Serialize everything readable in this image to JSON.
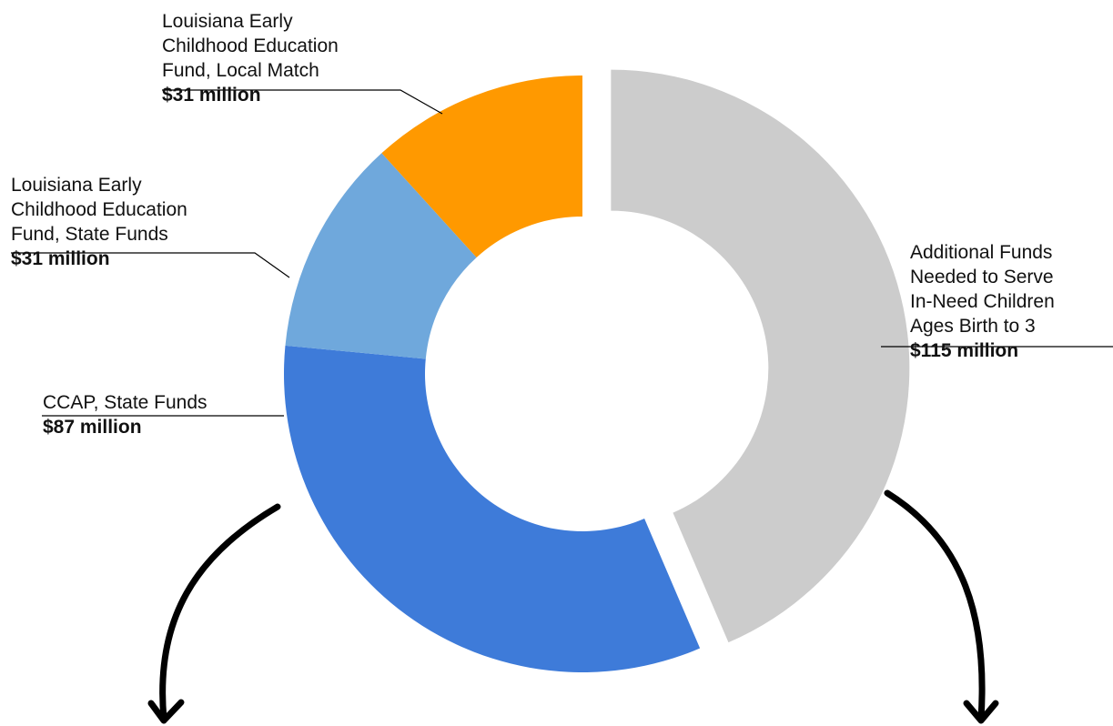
{
  "chart_data": {
    "type": "pie",
    "style": "donut",
    "slices": [
      {
        "label": "Additional Funds\nNeeded to Serve\nIn-Need Children\nAges Birth to 3",
        "value_label": "$115 million",
        "value": 115,
        "color": "#cccccc",
        "exploded": true
      },
      {
        "label": "CCAP, State Funds",
        "value_label": "$87 million",
        "value": 87,
        "color": "#3e7bd9",
        "exploded": false
      },
      {
        "label": "Louisiana Early\nChildhood Education\nFund, State Funds",
        "value_label": "$31 million",
        "value": 31,
        "color": "#6fa8dc",
        "exploded": false
      },
      {
        "label": "Louisiana Early\nChildhood Education\nFund, Local Match",
        "value_label": "$31 million",
        "value": 31,
        "color": "#ff9900",
        "exploded": false
      }
    ]
  }
}
